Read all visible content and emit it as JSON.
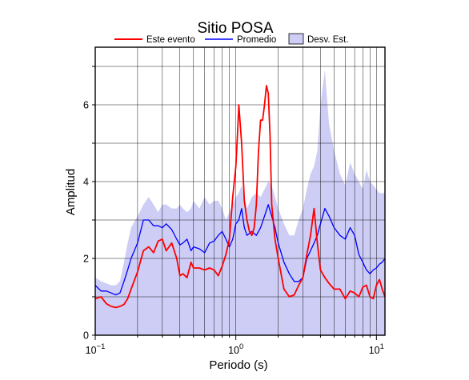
{
  "chart_data": {
    "type": "line",
    "title": "Sitio POSA",
    "xlabel": "Periodo (s)",
    "ylabel": "Amplitud",
    "x_scale": "log",
    "xlim": [
      0.1,
      11.5
    ],
    "ylim": [
      0,
      7.5
    ],
    "grid": true,
    "legend_position": "top",
    "x_ticks": [
      {
        "value": 0.1,
        "base": "10",
        "exp": "−1"
      },
      {
        "value": 1,
        "base": "10",
        "exp": "0"
      },
      {
        "value": 10,
        "base": "10",
        "exp": "1"
      }
    ],
    "y_ticks": [
      {
        "value": 0,
        "label": "0"
      },
      {
        "value": 2,
        "label": "2"
      },
      {
        "value": 4,
        "label": "4"
      },
      {
        "value": 6,
        "label": "6"
      }
    ],
    "legend": [
      {
        "label": "Este evento",
        "kind": "line",
        "color": "#ff0000"
      },
      {
        "label": "Promedio",
        "kind": "line",
        "color": "#0000ff"
      },
      {
        "label": "Desv. Est.",
        "kind": "patch",
        "color": "#cdcdf5"
      }
    ],
    "series": [
      {
        "name": "Este evento",
        "color": "#ff0000",
        "x": [
          0.1,
          0.11,
          0.12,
          0.13,
          0.14,
          0.15,
          0.16,
          0.17,
          0.18,
          0.2,
          0.22,
          0.24,
          0.26,
          0.28,
          0.3,
          0.32,
          0.35,
          0.38,
          0.4,
          0.42,
          0.45,
          0.48,
          0.5,
          0.55,
          0.6,
          0.65,
          0.7,
          0.75,
          0.8,
          0.85,
          0.9,
          0.95,
          1.0,
          1.03,
          1.05,
          1.1,
          1.15,
          1.2,
          1.25,
          1.3,
          1.35,
          1.4,
          1.45,
          1.5,
          1.55,
          1.6,
          1.65,
          1.7,
          1.75,
          1.8,
          1.9,
          2.0,
          2.2,
          2.4,
          2.6,
          2.8,
          3.0,
          3.2,
          3.4,
          3.6,
          3.8,
          4.0,
          4.3,
          4.6,
          5.0,
          5.5,
          6.0,
          6.5,
          7.0,
          7.5,
          8.0,
          8.5,
          9.0,
          9.5,
          10.0,
          10.5,
          11.0,
          11.5
        ],
        "y": [
          0.95,
          1.0,
          0.82,
          0.75,
          0.72,
          0.75,
          0.8,
          0.95,
          1.2,
          1.65,
          2.2,
          2.3,
          2.15,
          2.45,
          2.5,
          2.2,
          2.4,
          2.0,
          1.55,
          1.6,
          1.5,
          1.9,
          1.75,
          1.75,
          1.7,
          1.75,
          1.7,
          1.55,
          1.8,
          2.1,
          2.5,
          3.6,
          4.4,
          5.3,
          6.0,
          5.0,
          3.5,
          3.0,
          2.7,
          2.6,
          2.8,
          3.4,
          4.8,
          5.6,
          5.6,
          6.0,
          6.5,
          6.3,
          5.2,
          3.4,
          2.5,
          2.0,
          1.2,
          1.0,
          1.05,
          1.3,
          1.5,
          2.1,
          2.6,
          3.3,
          2.4,
          1.7,
          1.5,
          1.35,
          1.2,
          1.2,
          0.95,
          1.15,
          1.1,
          1.0,
          1.25,
          1.3,
          1.0,
          0.95,
          1.3,
          1.45,
          1.2,
          1.0
        ]
      },
      {
        "name": "Promedio",
        "color": "#0000ff",
        "x": [
          0.1,
          0.11,
          0.12,
          0.13,
          0.14,
          0.15,
          0.16,
          0.17,
          0.18,
          0.2,
          0.22,
          0.24,
          0.26,
          0.28,
          0.3,
          0.32,
          0.35,
          0.38,
          0.4,
          0.42,
          0.45,
          0.48,
          0.5,
          0.55,
          0.6,
          0.65,
          0.7,
          0.75,
          0.8,
          0.85,
          0.9,
          0.95,
          1.0,
          1.05,
          1.1,
          1.15,
          1.2,
          1.3,
          1.4,
          1.5,
          1.6,
          1.7,
          1.8,
          1.9,
          2.0,
          2.2,
          2.4,
          2.6,
          2.8,
          3.0,
          3.2,
          3.4,
          3.6,
          3.8,
          4.0,
          4.3,
          4.6,
          5.0,
          5.5,
          6.0,
          6.5,
          7.0,
          7.5,
          8.0,
          8.5,
          9.0,
          9.5,
          10.0,
          10.5,
          11.0,
          11.5
        ],
        "y": [
          1.3,
          1.15,
          1.15,
          1.1,
          1.05,
          1.1,
          1.4,
          1.7,
          2.0,
          2.4,
          3.0,
          3.0,
          2.85,
          2.85,
          2.8,
          2.9,
          2.75,
          2.5,
          2.35,
          2.4,
          2.5,
          2.2,
          2.3,
          2.25,
          2.15,
          2.4,
          2.45,
          2.6,
          2.7,
          2.5,
          2.3,
          2.5,
          2.9,
          3.0,
          3.3,
          2.8,
          2.6,
          2.7,
          2.6,
          2.8,
          3.1,
          3.4,
          3.1,
          2.8,
          2.4,
          1.9,
          1.6,
          1.4,
          1.4,
          1.5,
          2.0,
          2.2,
          2.4,
          2.6,
          2.9,
          3.3,
          3.1,
          2.8,
          2.6,
          2.5,
          2.8,
          2.6,
          2.1,
          1.9,
          1.7,
          1.6,
          1.7,
          1.75,
          1.85,
          1.9,
          2.0
        ]
      }
    ],
    "band": {
      "name": "Desv. Est.",
      "color": "#cdcdf5",
      "x": [
        0.1,
        0.11,
        0.12,
        0.13,
        0.14,
        0.15,
        0.16,
        0.17,
        0.18,
        0.2,
        0.22,
        0.24,
        0.26,
        0.28,
        0.3,
        0.32,
        0.35,
        0.38,
        0.4,
        0.42,
        0.45,
        0.48,
        0.5,
        0.55,
        0.6,
        0.65,
        0.7,
        0.75,
        0.8,
        0.85,
        0.9,
        0.95,
        1.0,
        1.05,
        1.1,
        1.15,
        1.2,
        1.3,
        1.4,
        1.5,
        1.6,
        1.7,
        1.8,
        1.9,
        2.0,
        2.2,
        2.4,
        2.6,
        2.8,
        3.0,
        3.2,
        3.4,
        3.6,
        3.8,
        4.0,
        4.3,
        4.6,
        5.0,
        5.5,
        6.0,
        6.5,
        7.0,
        7.5,
        8.0,
        8.5,
        9.0,
        9.5,
        10.0,
        10.5,
        11.0,
        11.5
      ],
      "upper": [
        1.5,
        1.4,
        1.35,
        1.3,
        1.3,
        1.4,
        1.9,
        2.4,
        2.8,
        3.1,
        3.4,
        3.6,
        3.4,
        3.2,
        3.4,
        3.4,
        3.3,
        3.3,
        3.4,
        3.3,
        3.2,
        3.3,
        3.5,
        3.3,
        3.6,
        3.4,
        3.5,
        3.5,
        3.3,
        3.0,
        3.2,
        3.4,
        3.6,
        3.7,
        3.9,
        3.6,
        3.3,
        3.6,
        3.7,
        3.6,
        3.8,
        4.0,
        3.9,
        3.6,
        3.3,
        2.9,
        2.6,
        2.6,
        3.0,
        3.3,
        3.8,
        4.2,
        4.4,
        4.8,
        6.0,
        6.9,
        5.5,
        4.8,
        4.2,
        3.9,
        4.5,
        4.2,
        4.0,
        3.8,
        4.3,
        4.0,
        3.9,
        3.8,
        3.7,
        3.7,
        3.7
      ]
    }
  }
}
